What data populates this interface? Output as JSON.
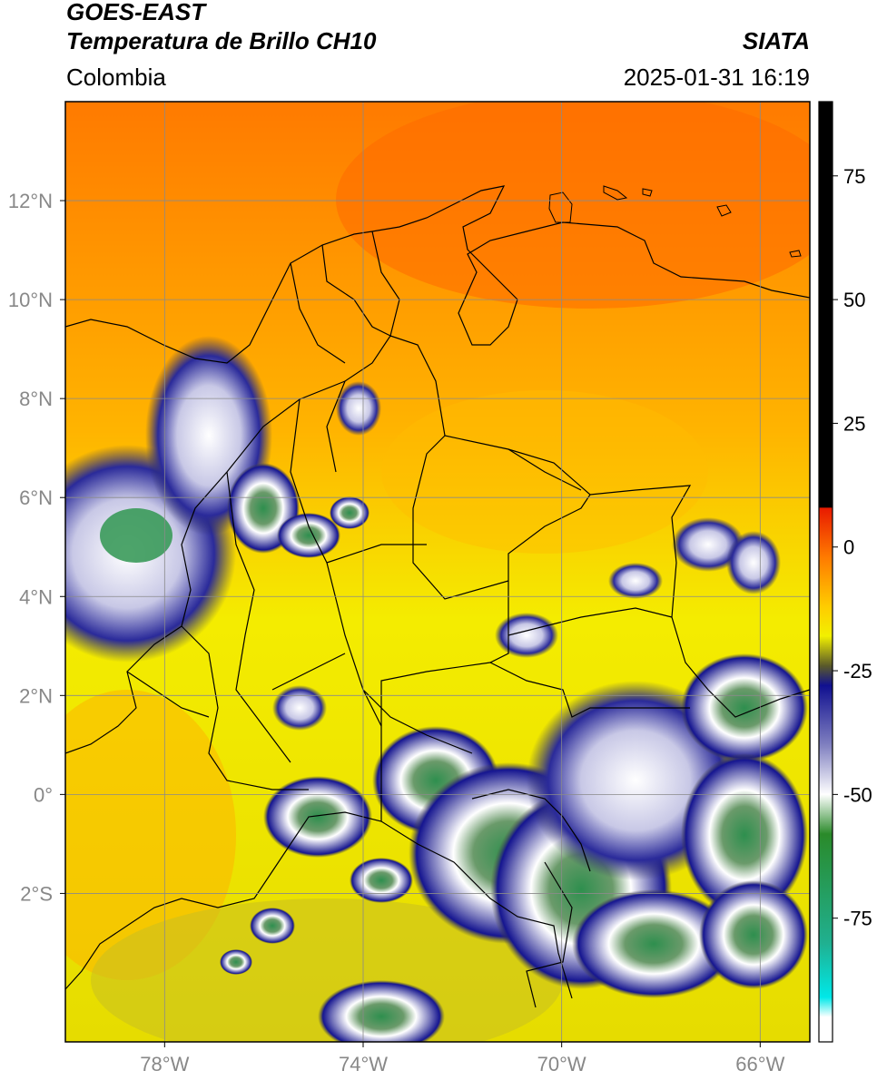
{
  "header": {
    "satellite": "GOES-EAST",
    "product": "Temperatura de Brillo CH10",
    "brand": "SIATA",
    "region": "Colombia",
    "timestamp": "2025-01-31 16:19"
  },
  "map": {
    "lon_range": [
      -80,
      -65
    ],
    "lat_range": [
      -5,
      14
    ],
    "lon_ticks": [
      {
        "value": -78,
        "label": "78°W"
      },
      {
        "value": -74,
        "label": "74°W"
      },
      {
        "value": -70,
        "label": "70°W"
      },
      {
        "value": -66,
        "label": "66°W"
      }
    ],
    "lat_ticks": [
      {
        "value": 12,
        "label": "12°N"
      },
      {
        "value": 10,
        "label": "10°N"
      },
      {
        "value": 8,
        "label": "8°N"
      },
      {
        "value": 6,
        "label": "6°N"
      },
      {
        "value": 4,
        "label": "4°N"
      },
      {
        "value": 2,
        "label": "2°N"
      },
      {
        "value": 0,
        "label": "0°"
      },
      {
        "value": -2,
        "label": "2°S"
      }
    ],
    "gridlines": true
  },
  "colorbar": {
    "range": [
      -100,
      90
    ],
    "ticks": [
      {
        "value": 75,
        "label": "75"
      },
      {
        "value": 50,
        "label": "50"
      },
      {
        "value": 25,
        "label": "25"
      },
      {
        "value": 0,
        "label": "0"
      },
      {
        "value": -25,
        "label": "-25"
      },
      {
        "value": -50,
        "label": "-50"
      },
      {
        "value": -75,
        "label": "-75"
      }
    ],
    "stops": [
      {
        "value": 90,
        "color": "#000000"
      },
      {
        "value": 8,
        "color": "#000000"
      },
      {
        "value": 7.9,
        "color": "#e81a00"
      },
      {
        "value": -2,
        "color": "#ff7a00"
      },
      {
        "value": -12,
        "color": "#ffcc00"
      },
      {
        "value": -18,
        "color": "#f2f000"
      },
      {
        "value": -24,
        "color": "#5a5a2a"
      },
      {
        "value": -28,
        "color": "#101090"
      },
      {
        "value": -40,
        "color": "#8080c0"
      },
      {
        "value": -50,
        "color": "#ffffff"
      },
      {
        "value": -58,
        "color": "#2a8a2a"
      },
      {
        "value": -80,
        "color": "#20b090"
      },
      {
        "value": -91,
        "color": "#00e8e8"
      },
      {
        "value": -95,
        "color": "#ffffff"
      },
      {
        "value": -100,
        "color": "#ffffff"
      }
    ]
  }
}
